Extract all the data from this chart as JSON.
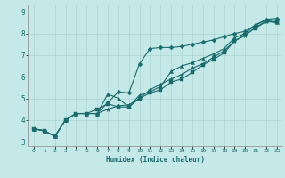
{
  "title": "",
  "xlabel": "Humidex (Indice chaleur)",
  "background_color": "#c5e8e8",
  "line_color": "#1a6b6b",
  "grid_color": "#afd4d4",
  "xlim": [
    -0.5,
    23.5
  ],
  "ylim": [
    2.8,
    9.3
  ],
  "xticks": [
    0,
    1,
    2,
    3,
    4,
    5,
    6,
    7,
    8,
    9,
    10,
    11,
    12,
    13,
    14,
    15,
    16,
    17,
    18,
    19,
    20,
    21,
    22,
    23
  ],
  "yticks": [
    3,
    4,
    5,
    6,
    7,
    8,
    9
  ],
  "line1_x": [
    0,
    1,
    2,
    3,
    4,
    5,
    6,
    7,
    8,
    9,
    10,
    11,
    12,
    13,
    14,
    15,
    16,
    17,
    18,
    19,
    20,
    21,
    22,
    23
  ],
  "line1_y": [
    3.6,
    3.5,
    3.25,
    4.0,
    4.3,
    4.3,
    4.3,
    4.8,
    5.3,
    5.25,
    6.6,
    7.3,
    7.35,
    7.35,
    7.4,
    7.5,
    7.6,
    7.7,
    7.85,
    8.0,
    8.1,
    8.4,
    8.65,
    8.7
  ],
  "line2_x": [
    0,
    1,
    2,
    3,
    4,
    5,
    6,
    7,
    8,
    9,
    10,
    11,
    12,
    13,
    14,
    15,
    16,
    17,
    18,
    19,
    20,
    21,
    22,
    23
  ],
  "line2_y": [
    3.6,
    3.5,
    3.25,
    4.0,
    4.3,
    4.3,
    4.3,
    5.2,
    5.0,
    4.6,
    5.15,
    5.3,
    5.55,
    6.25,
    6.5,
    6.65,
    6.85,
    7.05,
    7.3,
    7.8,
    8.0,
    8.4,
    8.6,
    8.5
  ],
  "line3_x": [
    0,
    1,
    2,
    3,
    4,
    5,
    6,
    7,
    8,
    9,
    10,
    11,
    12,
    13,
    14,
    15,
    16,
    17,
    18,
    19,
    20,
    21,
    22,
    23
  ],
  "line3_y": [
    3.6,
    3.5,
    3.25,
    4.0,
    4.3,
    4.3,
    4.5,
    4.75,
    4.6,
    4.6,
    5.0,
    5.25,
    5.4,
    5.75,
    5.9,
    6.2,
    6.55,
    6.8,
    7.1,
    7.65,
    7.95,
    8.25,
    8.55,
    8.5
  ],
  "line4_x": [
    0,
    1,
    2,
    3,
    4,
    5,
    6,
    7,
    8,
    9,
    10,
    11,
    12,
    13,
    14,
    15,
    16,
    17,
    18,
    19,
    20,
    21,
    22,
    23
  ],
  "line4_y": [
    3.6,
    3.5,
    3.25,
    4.0,
    4.3,
    4.3,
    4.3,
    4.5,
    4.65,
    4.7,
    5.0,
    5.4,
    5.65,
    5.9,
    6.1,
    6.4,
    6.6,
    6.9,
    7.2,
    7.65,
    7.9,
    8.3,
    8.55,
    8.55
  ]
}
